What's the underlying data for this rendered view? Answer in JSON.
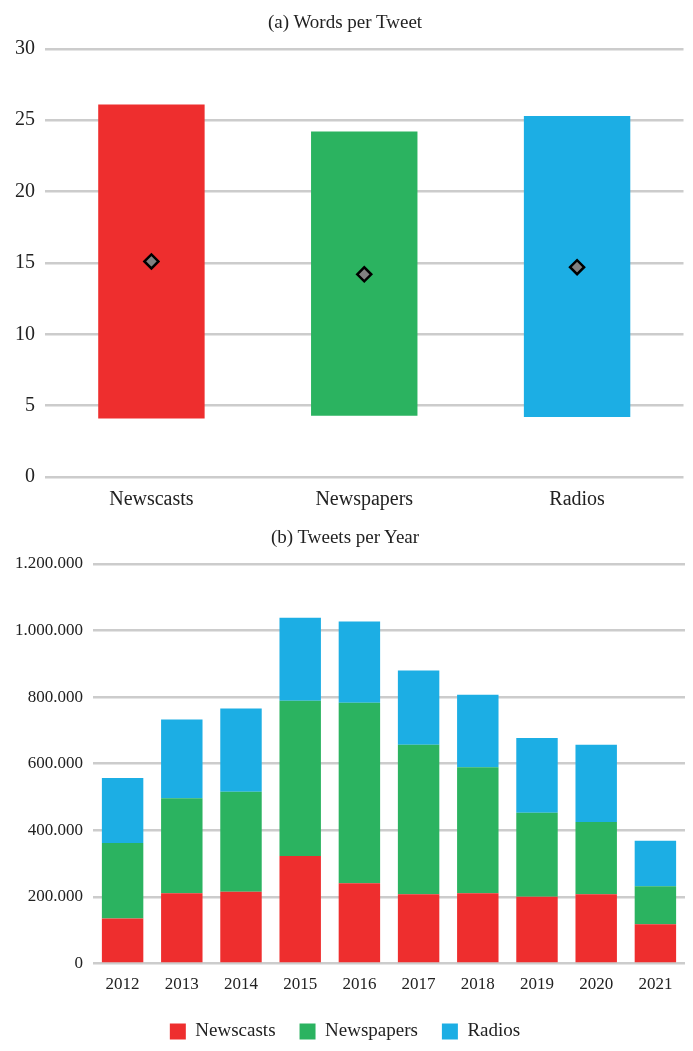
{
  "chart_data": [
    {
      "type": "bar",
      "title": "(a) Words per Tweet",
      "categories": [
        "Newscasts",
        "Newspapers",
        "Radios"
      ],
      "ylim": [
        0,
        30
      ],
      "yticks": [
        0,
        5,
        10,
        15,
        20,
        25,
        30
      ],
      "grid": "y",
      "legend": false,
      "marker": "diamond",
      "series": [
        {
          "base": [
            4.1,
            4.3,
            4.2
          ],
          "values": [
            22.0,
            19.9,
            21.1
          ],
          "colors": [
            "#ee2e2e",
            "#2bb360",
            "#1caee4"
          ]
        },
        {
          "type": "scatter",
          "x": [
            "Newscasts",
            "Newspapers",
            "Radios"
          ],
          "values": [
            15.1,
            14.2,
            14.7
          ],
          "color": "#808080"
        }
      ]
    },
    {
      "type": "bar",
      "title": "(b) Tweets per Year",
      "categories": [
        "2012",
        "2013",
        "2014",
        "2015",
        "2016",
        "2017",
        "2018",
        "2019",
        "2020",
        "2021"
      ],
      "stacked": true,
      "ylim": [
        0,
        1200000
      ],
      "yticks": [
        {
          "value": 0,
          "label": "0"
        },
        {
          "value": 200000,
          "label": "200.000"
        },
        {
          "value": 400000,
          "label": "400.000"
        },
        {
          "value": 600000,
          "label": "600.000"
        },
        {
          "value": 800000,
          "label": "800.000"
        },
        {
          "value": 1000000,
          "label": "1.000.000"
        },
        {
          "value": 1200000,
          "label": "1.200.000"
        }
      ],
      "grid": "y",
      "legend": "bottom",
      "series": [
        {
          "name": "Newscasts",
          "color": "#ee2e2e",
          "values": [
            135000,
            211000,
            216000,
            323000,
            241000,
            208000,
            211000,
            201000,
            208000,
            118000
          ]
        },
        {
          "name": "Newspapers",
          "color": "#2bb360",
          "values": [
            227000,
            285000,
            300000,
            466000,
            542000,
            449000,
            378000,
            252000,
            217000,
            114000
          ]
        },
        {
          "name": "Radios",
          "color": "#1caee4",
          "values": [
            195000,
            237000,
            250000,
            249000,
            244000,
            223000,
            218000,
            224000,
            232000,
            137000
          ]
        }
      ]
    }
  ]
}
